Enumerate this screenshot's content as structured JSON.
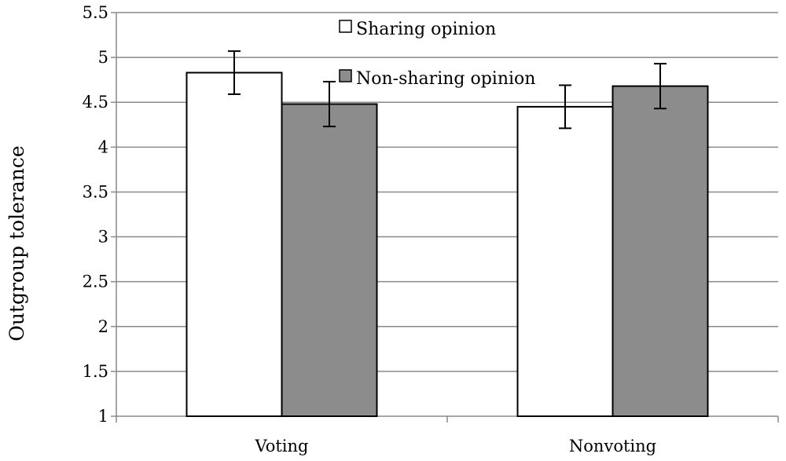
{
  "chart_data": {
    "type": "bar",
    "categories": [
      "Voting",
      "Nonvoting"
    ],
    "series": [
      {
        "name": "Sharing opinion",
        "values": [
          4.83,
          4.45
        ],
        "errors": [
          0.24,
          0.24
        ],
        "color": "#ffffff"
      },
      {
        "name": "Non-sharing opinion",
        "values": [
          4.48,
          4.68
        ],
        "errors": [
          0.25,
          0.25
        ],
        "color": "#8c8c8c"
      }
    ],
    "title": "",
    "xlabel": "",
    "ylabel": "Outgroup tolerance",
    "ylim": [
      1,
      5.5
    ],
    "yticks": [
      1,
      1.5,
      2,
      2.5,
      3,
      3.5,
      4,
      4.5,
      5,
      5.5
    ],
    "ytick_labels": [
      "1",
      "1.5",
      "2",
      "2.5",
      "3",
      "3.5",
      "4",
      "4.5",
      "5",
      "5.5"
    ],
    "grid": true,
    "legend": "top-center"
  }
}
